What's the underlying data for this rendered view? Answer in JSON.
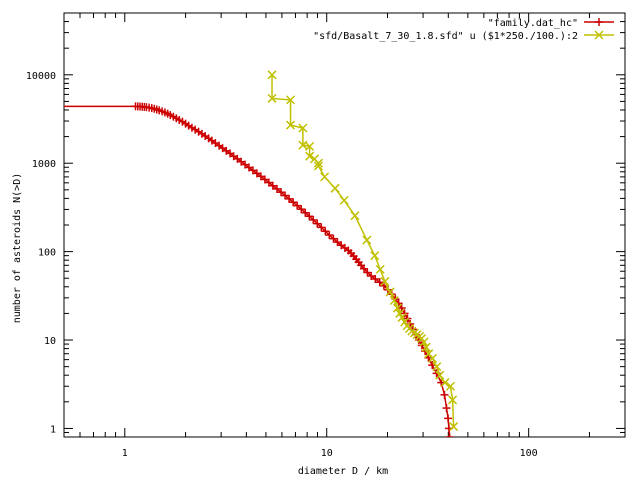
{
  "chart_data": {
    "type": "line",
    "title": "",
    "xlabel": "diameter D / km",
    "ylabel": "number of asteroids N(>D)",
    "x_scale": "log",
    "y_scale": "log",
    "xlim": [
      0.5,
      300
    ],
    "ylim": [
      0.8,
      50000
    ],
    "x_ticks": [
      {
        "value": 1,
        "label": "1"
      },
      {
        "value": 10,
        "label": "10"
      },
      {
        "value": 100,
        "label": "100"
      }
    ],
    "y_ticks": [
      {
        "value": 1,
        "label": "1"
      },
      {
        "value": 10,
        "label": "10"
      },
      {
        "value": 100,
        "label": "100"
      },
      {
        "value": 1000,
        "label": "1000"
      },
      {
        "value": 10000,
        "label": "10000"
      }
    ],
    "grid": false,
    "legend_position": "top-right",
    "series": [
      {
        "name": "\"family.dat_hc\"",
        "color": "#cc0000",
        "marker": "plus",
        "points": [
          [
            0.5,
            4400
          ],
          [
            1.13,
            4400
          ],
          [
            1.16,
            4390
          ],
          [
            1.19,
            4375
          ],
          [
            1.22,
            4355
          ],
          [
            1.25,
            4330
          ],
          [
            1.28,
            4300
          ],
          [
            1.32,
            4255
          ],
          [
            1.36,
            4200
          ],
          [
            1.4,
            4130
          ],
          [
            1.44,
            4050
          ],
          [
            1.48,
            3960
          ],
          [
            1.53,
            3860
          ],
          [
            1.58,
            3750
          ],
          [
            1.63,
            3630
          ],
          [
            1.68,
            3500
          ],
          [
            1.74,
            3360
          ],
          [
            1.8,
            3220
          ],
          [
            1.86,
            3080
          ],
          [
            1.93,
            2950
          ],
          [
            2.0,
            2800
          ],
          [
            2.07,
            2660
          ],
          [
            2.15,
            2520
          ],
          [
            2.23,
            2400
          ],
          [
            2.32,
            2270
          ],
          [
            2.41,
            2150
          ],
          [
            2.5,
            2030
          ],
          [
            2.6,
            1910
          ],
          [
            2.7,
            1800
          ],
          [
            2.81,
            1690
          ],
          [
            2.93,
            1580
          ],
          [
            3.05,
            1480
          ],
          [
            3.18,
            1380
          ],
          [
            3.32,
            1290
          ],
          [
            3.46,
            1200
          ],
          [
            3.61,
            1120
          ],
          [
            3.77,
            1040
          ],
          [
            3.94,
            965
          ],
          [
            4.12,
            895
          ],
          [
            4.31,
            830
          ],
          [
            4.51,
            768
          ],
          [
            4.72,
            710
          ],
          [
            4.94,
            655
          ],
          [
            5.17,
            604
          ],
          [
            5.41,
            556
          ],
          [
            5.67,
            512
          ],
          [
            5.94,
            470
          ],
          [
            6.22,
            431
          ],
          [
            6.51,
            395
          ],
          [
            6.82,
            362
          ],
          [
            7.14,
            331
          ],
          [
            7.48,
            302
          ],
          [
            7.83,
            275
          ],
          [
            8.2,
            251
          ],
          [
            8.58,
            228
          ],
          [
            8.98,
            207
          ],
          [
            9.4,
            188
          ],
          [
            9.84,
            170
          ],
          [
            10.3,
            154
          ],
          [
            10.8,
            140
          ],
          [
            11.3,
            128
          ],
          [
            11.8,
            118
          ],
          [
            12.3,
            110
          ],
          [
            12.8,
            103
          ],
          [
            13.2,
            96
          ],
          [
            13.6,
            89
          ],
          [
            14.0,
            82
          ],
          [
            14.4,
            76
          ],
          [
            14.8,
            70
          ],
          [
            15.3,
            64
          ],
          [
            15.9,
            58
          ],
          [
            16.6,
            53
          ],
          [
            17.4,
            49
          ],
          [
            18.3,
            45
          ],
          [
            19.2,
            41
          ],
          [
            20.1,
            37
          ],
          [
            21.0,
            33
          ],
          [
            21.9,
            29
          ],
          [
            22.7,
            26
          ],
          [
            23.5,
            23
          ],
          [
            24.3,
            20
          ],
          [
            25.1,
            17.5
          ],
          [
            25.9,
            15.2
          ],
          [
            26.7,
            13.2
          ],
          [
            27.6,
            11.5
          ],
          [
            28.6,
            10
          ],
          [
            29.6,
            8.7
          ],
          [
            30.7,
            7.5
          ],
          [
            31.9,
            6.3
          ],
          [
            33.3,
            5.2
          ],
          [
            35.0,
            4.2
          ],
          [
            36.9,
            3.3
          ],
          [
            38.3,
            2.4
          ],
          [
            39.2,
            1.7
          ],
          [
            39.9,
            1.3
          ],
          [
            40.3,
            1.0
          ],
          [
            40.6,
            0.8
          ]
        ]
      },
      {
        "name": "\"sfd/Basalt_7_30_1.8.sfd\" u ($1*250./100.):2",
        "color": "#c0c000",
        "marker": "x",
        "points": [
          [
            5.36,
            10000
          ],
          [
            5.36,
            5400
          ],
          [
            6.62,
            5200
          ],
          [
            6.62,
            2700
          ],
          [
            7.62,
            2500
          ],
          [
            7.62,
            1600
          ],
          [
            8.23,
            1550
          ],
          [
            8.23,
            1200
          ],
          [
            8.7,
            1120
          ],
          [
            9.1,
            1000
          ],
          [
            9.1,
            930
          ],
          [
            9.76,
            700
          ],
          [
            11.0,
            520
          ],
          [
            12.2,
            380
          ],
          [
            13.8,
            255
          ],
          [
            15.8,
            135
          ],
          [
            17.3,
            90
          ],
          [
            18.4,
            63
          ],
          [
            19.4,
            46
          ],
          [
            20.6,
            35
          ],
          [
            21.6,
            28
          ],
          [
            22.4,
            23
          ],
          [
            23.0,
            20
          ],
          [
            23.6,
            18
          ],
          [
            24.3,
            16
          ],
          [
            25.0,
            14.5
          ],
          [
            25.7,
            13.5
          ],
          [
            26.4,
            12.6
          ],
          [
            27.2,
            12
          ],
          [
            28.0,
            11.5
          ],
          [
            28.8,
            11
          ],
          [
            29.5,
            10.4
          ],
          [
            30.3,
            9.5
          ],
          [
            31.1,
            8.3
          ],
          [
            32.0,
            7
          ],
          [
            33.4,
            6.2
          ],
          [
            35.1,
            5.0
          ],
          [
            36.3,
            4.0
          ],
          [
            38.5,
            3.3
          ],
          [
            41.0,
            3.0
          ],
          [
            42.0,
            2.1
          ],
          [
            42.5,
            1.05
          ]
        ]
      }
    ]
  }
}
